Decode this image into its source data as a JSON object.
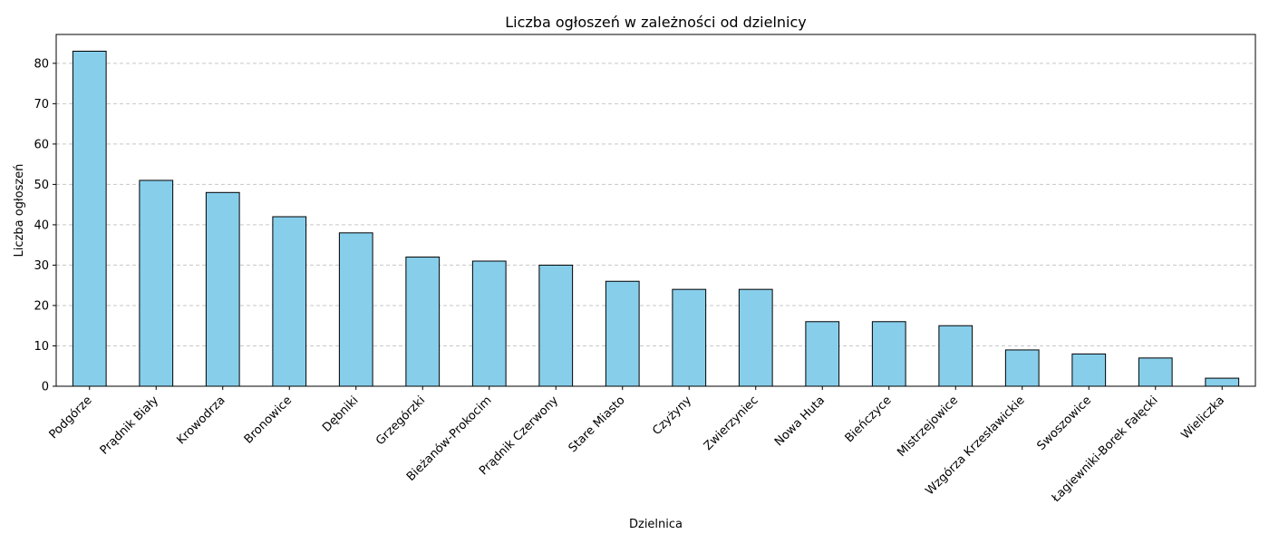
{
  "chart_data": {
    "type": "bar",
    "title": "Liczba ogłoszeń w zależności od dzielnicy",
    "xlabel": "Dzielnica",
    "ylabel": "Liczba ogłoszeń",
    "categories": [
      "Podgórze",
      "Prądnik Biały",
      "Krowodrza",
      "Bronowice",
      "Dębniki",
      "Grzegórzki",
      "Bieżanów-Prokocim",
      "Prądnik Czerwony",
      "Stare Miasto",
      "Czyżyny",
      "Zwierzyniec",
      "Nowa Huta",
      "Bieńczyce",
      "Mistrzejowice",
      "Wzgórza Krzesławickie",
      "Swoszowice",
      "Łagiewniki-Borek Fałęcki",
      "Wieliczka"
    ],
    "values": [
      83,
      51,
      48,
      42,
      38,
      32,
      31,
      30,
      26,
      24,
      24,
      16,
      16,
      15,
      9,
      8,
      7,
      2
    ],
    "ylim": [
      0,
      87.15
    ],
    "yticks": [
      "0",
      "10",
      "20",
      "30",
      "40",
      "50",
      "60",
      "70",
      "80"
    ],
    "grid": "y-dashed",
    "bar_color": "#87ceeb",
    "edge_color": "#000000",
    "grid_color": "#c8c8c8"
  }
}
